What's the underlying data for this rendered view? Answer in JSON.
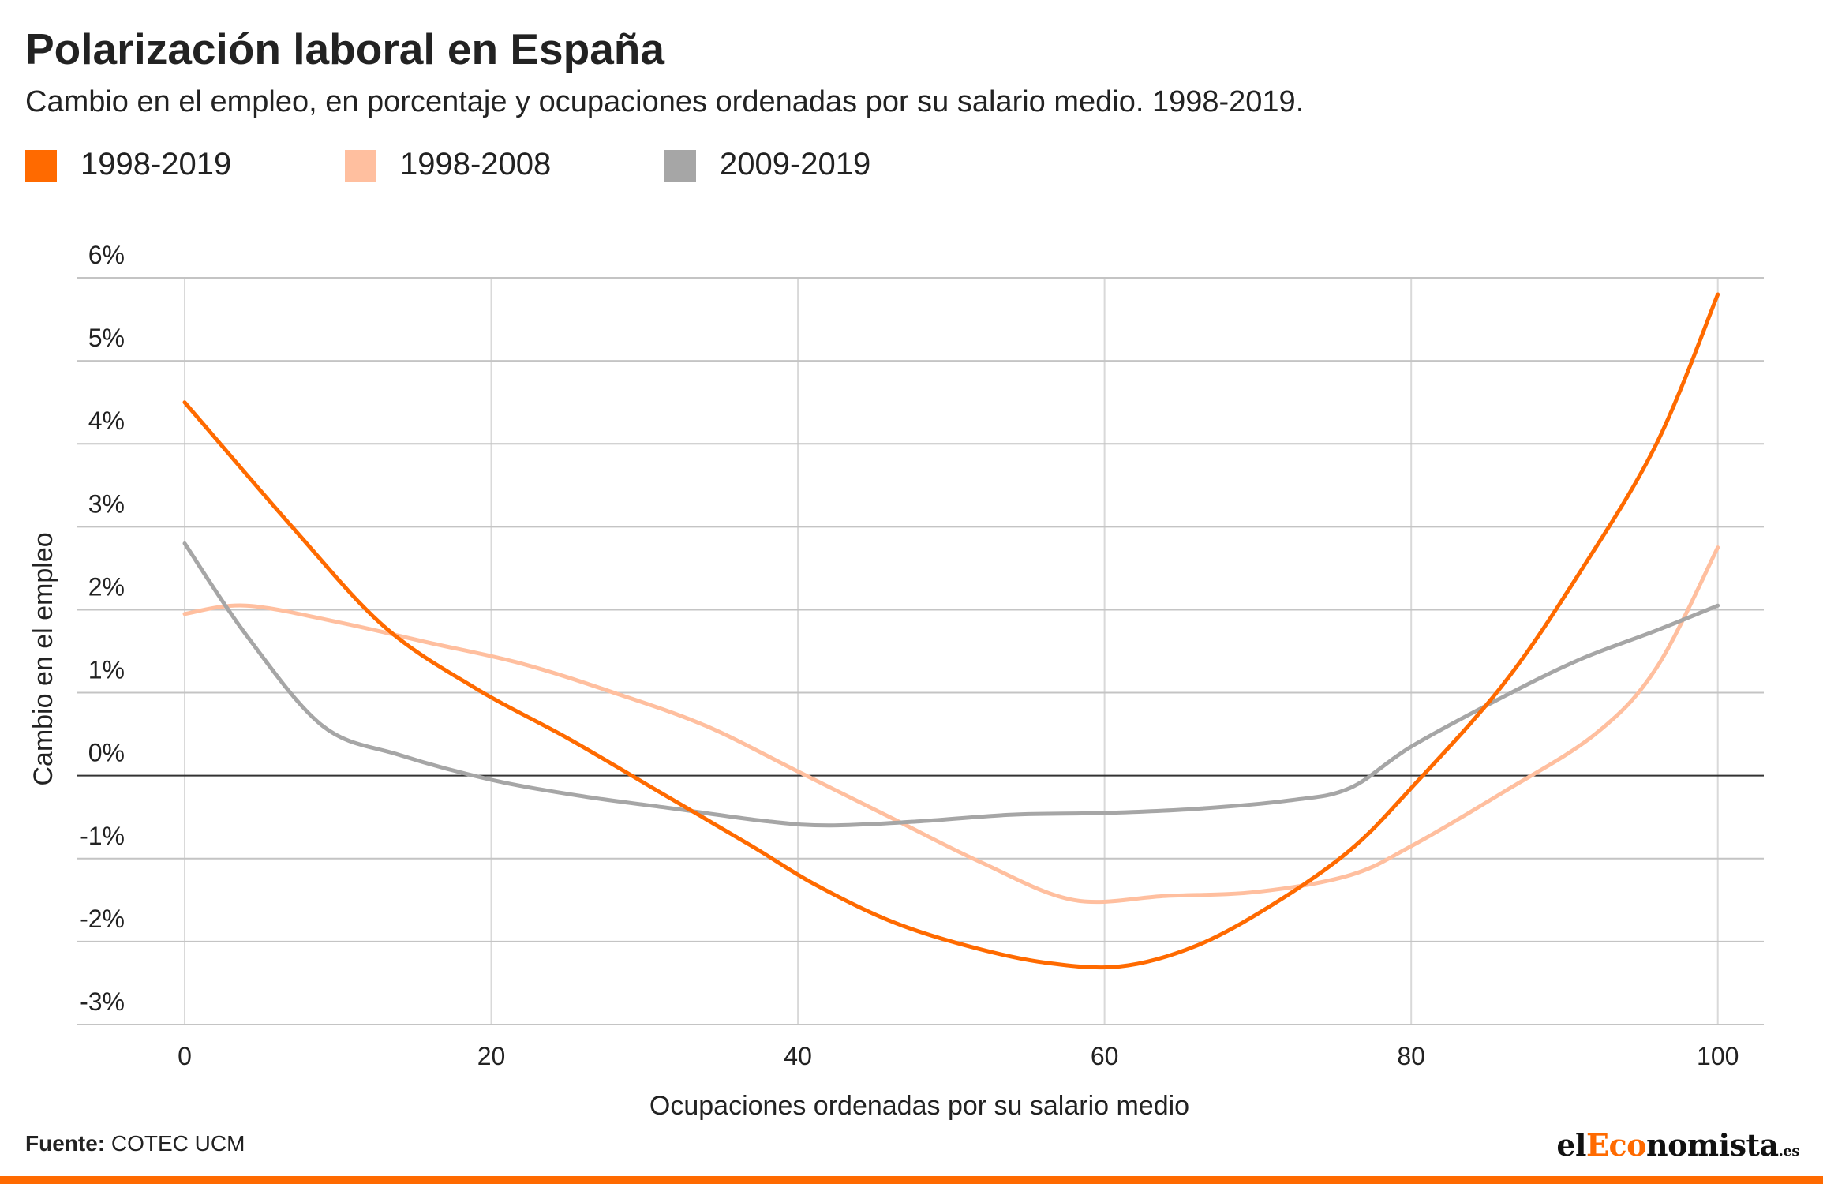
{
  "title": "Polarización laboral en España",
  "subtitle": "Cambio en el empleo, en porcentaje y ocupaciones ordenadas por su salario medio. 1998-2019.",
  "legend": [
    {
      "label": "1998-2019",
      "color": "#ff6a00"
    },
    {
      "label": "1998-2008",
      "color": "#ffbf9f"
    },
    {
      "label": "2009-2019",
      "color": "#a6a6a6"
    }
  ],
  "source": {
    "label": "Fuente:",
    "text": " COTEC UCM"
  },
  "logo": {
    "prefix": "el",
    "accent": "Eco",
    "suffix": "nomista",
    "tld": ".es"
  },
  "colors": {
    "accent": "#ff6a00",
    "grid": "#d9d9d9",
    "zero_line": "#333333"
  },
  "chart_data": {
    "type": "line",
    "xlabel": "Ocupaciones ordenadas por su salario medio",
    "ylabel": "Cambio en el empleo",
    "xlim": [
      -7,
      103
    ],
    "ylim": [
      -3,
      6
    ],
    "x_ticks": [
      0,
      20,
      40,
      60,
      80,
      100
    ],
    "x_tick_labels": [
      "0",
      "20",
      "40",
      "60",
      "80",
      "100"
    ],
    "y_ticks": [
      6,
      5,
      4,
      3,
      2,
      1,
      0,
      -1,
      -2,
      -3
    ],
    "y_tick_labels": [
      "6%",
      "5%",
      "4%",
      "3%",
      "2%",
      "1%",
      "0%",
      "-1%",
      "-2%",
      "-3%"
    ],
    "grid": true,
    "series": [
      {
        "name": "1998-2008",
        "color": "#ffbf9f",
        "x": [
          0,
          4,
          10,
          16,
          22,
          28,
          34,
          40,
          46,
          52,
          58,
          64,
          70,
          76,
          80,
          86,
          92,
          96,
          100
        ],
        "y": [
          1.95,
          2.05,
          1.85,
          1.6,
          1.35,
          1.0,
          0.6,
          0.05,
          -0.5,
          -1.05,
          -1.5,
          -1.45,
          -1.4,
          -1.2,
          -0.85,
          -0.2,
          0.5,
          1.3,
          2.75
        ]
      },
      {
        "name": "2009-2019",
        "color": "#a6a6a6",
        "x": [
          0,
          4,
          9,
          14,
          20,
          26,
          32,
          38,
          42,
          48,
          54,
          60,
          66,
          72,
          76,
          80,
          86,
          91,
          96,
          100
        ],
        "y": [
          2.8,
          1.7,
          0.6,
          0.25,
          -0.05,
          -0.25,
          -0.4,
          -0.55,
          -0.6,
          -0.55,
          -0.47,
          -0.45,
          -0.4,
          -0.3,
          -0.15,
          0.35,
          0.95,
          1.4,
          1.75,
          2.05
        ]
      },
      {
        "name": "1998-2019",
        "color": "#ff6a00",
        "x": [
          0,
          7,
          13,
          19,
          25,
          31,
          37,
          41,
          46,
          51,
          56,
          61,
          66,
          71,
          76,
          80,
          86,
          91,
          96,
          100
        ],
        "y": [
          4.5,
          3.0,
          1.8,
          1.05,
          0.45,
          -0.2,
          -0.85,
          -1.3,
          -1.75,
          -2.05,
          -2.25,
          -2.3,
          -2.05,
          -1.55,
          -0.9,
          -0.15,
          1.1,
          2.45,
          4.0,
          5.8
        ]
      }
    ]
  }
}
